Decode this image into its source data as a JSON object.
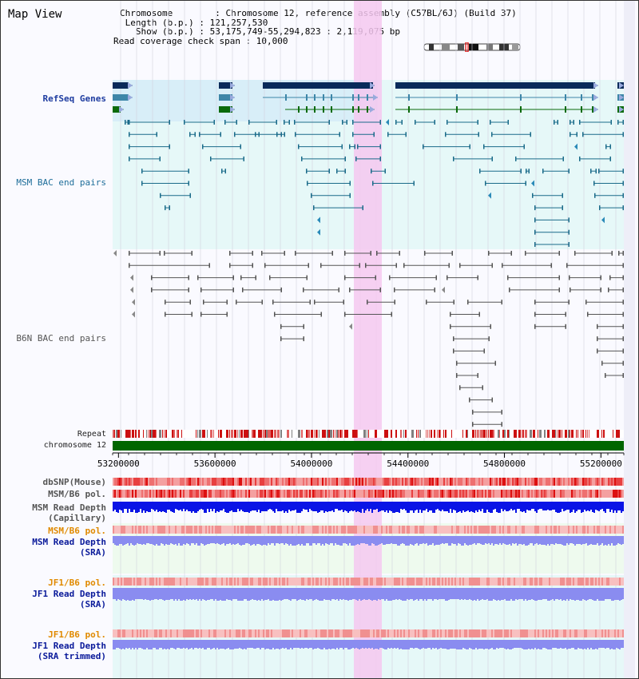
{
  "view": {
    "title": "Map View"
  },
  "assembly": {
    "chromosome_line": "Chromosome        : Chromosome 12, reference assembly (C57BL/6J) (Build 37)",
    "length_line": " Length (b.p.) : 121,257,530",
    "show_line": "   Show (b.p.) : 53,175,749-55,294,823 : 2,119,075 bp",
    "coverage_line": "Read coverage check span : 10,000"
  },
  "tracks": {
    "refseq": "RefSeq Genes",
    "msm_bac": "MSM BAC end pairs",
    "b6n_bac": "B6N BAC end pairs",
    "repeat": "Repeat",
    "chromosome": "chromosome 12",
    "dbsnp": "dbSNP(Mouse)",
    "msm_pol_1": "MSM/B6 pol.",
    "msm_depth_cap_1": "MSM Read Depth",
    "msm_depth_cap_2": "(Capillary)",
    "msm_pol_2": "MSM/B6 pol.",
    "msm_depth_sra_1": "MSM Read Depth",
    "msm_depth_sra_2": "(SRA)",
    "jf1_pol_1": "JF1/B6 pol.",
    "jf1_depth_1": "JF1 Read Depth",
    "jf1_depth_2": "(SRA)",
    "jf1_pol_2": "JF1/B6 pol.",
    "jf1_trim_1": "JF1 Read Depth",
    "jf1_trim_2": "(SRA trimmed)"
  },
  "axis": {
    "ticks": [
      "53200000",
      "53600000",
      "54000000",
      "54400000",
      "54800000",
      "55200000"
    ]
  },
  "colors": {
    "gene_dark": "#0a2a5a",
    "gene_teal": "#3d86a8",
    "gene_green": "#0a6a0a",
    "highlight": "#f5c8f0",
    "depth_capillary": "#0a14e6",
    "depth_sra": "#8a8cf0",
    "chromosome_bar": "#006600"
  }
}
